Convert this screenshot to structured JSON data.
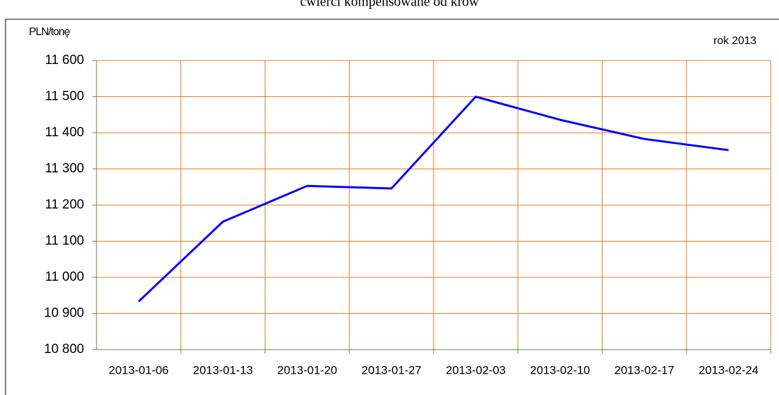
{
  "chart_data": {
    "type": "line",
    "title": "ćwierci kompensowane od krów",
    "y_label": "PLN/tonę",
    "annotation": "rok 2013",
    "categories": [
      "2013-01-06",
      "2013-01-13",
      "2013-01-20",
      "2013-01-27",
      "2013-02-03",
      "2013-02-10",
      "2013-02-17",
      "2013-02-24"
    ],
    "series": [
      {
        "name": "PLN/tonę",
        "color": "#0000ff",
        "values": [
          10933,
          11154,
          11253,
          11246,
          11500,
          11436,
          11383,
          11352
        ]
      }
    ],
    "ylim": [
      10800,
      11600
    ],
    "yticks": [
      {
        "value": 10800,
        "label": "10 800"
      },
      {
        "value": 10900,
        "label": "10 900"
      },
      {
        "value": 11000,
        "label": "11 000"
      },
      {
        "value": 11100,
        "label": "11 100"
      },
      {
        "value": 11200,
        "label": "11 200"
      },
      {
        "value": 11300,
        "label": "11 300"
      },
      {
        "value": 11400,
        "label": "11 400"
      },
      {
        "value": 11500,
        "label": "11 500"
      },
      {
        "value": 11600,
        "label": "11 600"
      }
    ],
    "grid": true,
    "grid_color": "#e07a1f"
  }
}
